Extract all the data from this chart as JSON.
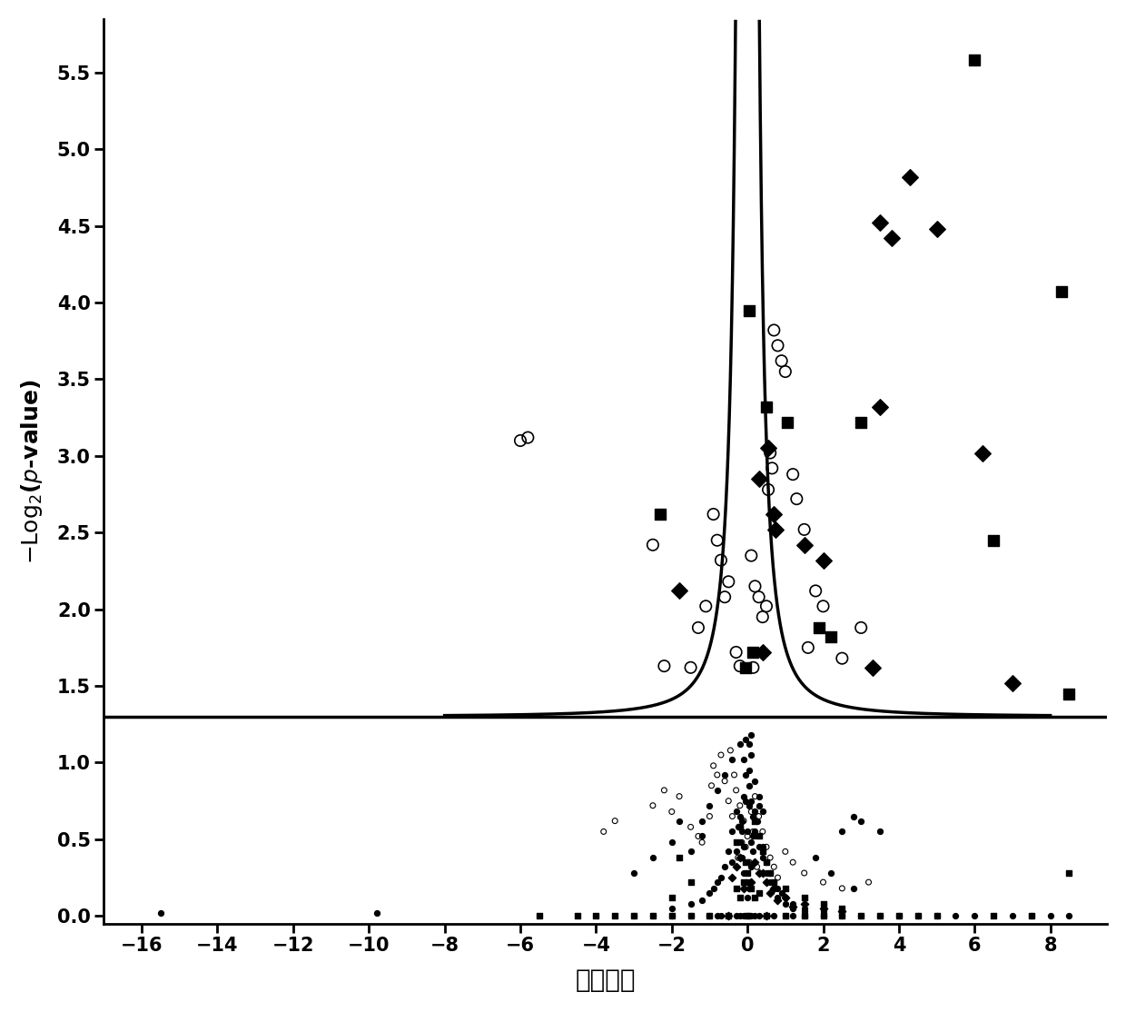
{
  "xlabel": "定量数値",
  "ylabel": "-Log$_2$($p$-value)",
  "xlim": [
    -17,
    9.5
  ],
  "ylim": [
    -0.05,
    5.85
  ],
  "xticks": [
    -16,
    -14,
    -12,
    -10,
    -8,
    -6,
    -4,
    -2,
    0,
    2,
    4,
    6,
    8
  ],
  "yticks": [
    0,
    0.5,
    1.0,
    1.5,
    2.0,
    2.5,
    3.0,
    3.5,
    4.0,
    4.5,
    5.0,
    5.5
  ],
  "threshold_y": 1.3,
  "background_color": "#ffffff",
  "point_color": "#000000",
  "line_color": "#000000",
  "scatter_circle_open_large": [
    [
      -6.0,
      3.1
    ],
    [
      -5.8,
      3.12
    ],
    [
      -2.5,
      2.42
    ],
    [
      -0.8,
      2.45
    ],
    [
      -0.7,
      2.32
    ],
    [
      -0.5,
      2.18
    ],
    [
      -0.6,
      2.08
    ],
    [
      -0.3,
      1.72
    ],
    [
      -0.2,
      1.63
    ],
    [
      -0.9,
      2.62
    ],
    [
      -1.1,
      2.02
    ],
    [
      -1.3,
      1.88
    ],
    [
      -2.2,
      1.63
    ],
    [
      -1.5,
      1.62
    ],
    [
      0.1,
      2.35
    ],
    [
      0.2,
      2.15
    ],
    [
      0.3,
      2.08
    ],
    [
      0.4,
      1.95
    ],
    [
      0.5,
      2.02
    ],
    [
      0.7,
      3.82
    ],
    [
      0.8,
      3.72
    ],
    [
      0.9,
      3.62
    ],
    [
      1.0,
      3.55
    ],
    [
      1.2,
      2.88
    ],
    [
      1.3,
      2.72
    ],
    [
      1.5,
      2.52
    ],
    [
      1.8,
      2.12
    ],
    [
      2.0,
      2.02
    ],
    [
      0.6,
      3.02
    ],
    [
      0.65,
      2.92
    ],
    [
      0.55,
      2.78
    ],
    [
      2.5,
      1.68
    ],
    [
      3.0,
      1.88
    ],
    [
      1.6,
      1.75
    ],
    [
      0.15,
      1.62
    ]
  ],
  "scatter_circle_open_small": [
    [
      -3.8,
      0.55
    ],
    [
      -3.5,
      0.62
    ],
    [
      -2.5,
      0.72
    ],
    [
      -2.2,
      0.82
    ],
    [
      -2.0,
      0.68
    ],
    [
      -1.8,
      0.78
    ],
    [
      -1.5,
      0.58
    ],
    [
      -1.2,
      0.48
    ],
    [
      -0.8,
      0.92
    ],
    [
      -0.7,
      1.05
    ],
    [
      -0.6,
      0.88
    ],
    [
      -0.5,
      0.75
    ],
    [
      -0.4,
      0.65
    ],
    [
      -0.3,
      0.82
    ],
    [
      -0.2,
      0.72
    ],
    [
      -0.1,
      0.62
    ],
    [
      0.0,
      0.52
    ],
    [
      0.1,
      0.68
    ],
    [
      0.2,
      0.78
    ],
    [
      0.3,
      0.65
    ],
    [
      0.4,
      0.55
    ],
    [
      0.5,
      0.45
    ],
    [
      0.6,
      0.38
    ],
    [
      1.0,
      0.42
    ],
    [
      1.2,
      0.35
    ],
    [
      1.5,
      0.28
    ],
    [
      2.0,
      0.22
    ],
    [
      -0.9,
      0.98
    ],
    [
      -0.95,
      0.85
    ],
    [
      0.05,
      0.35
    ],
    [
      -0.05,
      0.45
    ],
    [
      0.15,
      0.55
    ],
    [
      -0.15,
      0.48
    ],
    [
      0.25,
      0.32
    ],
    [
      -0.25,
      0.38
    ],
    [
      -1.0,
      0.65
    ],
    [
      -1.3,
      0.52
    ],
    [
      2.5,
      0.18
    ],
    [
      3.2,
      0.22
    ],
    [
      0.7,
      0.32
    ],
    [
      0.8,
      0.25
    ],
    [
      -0.35,
      0.92
    ],
    [
      -0.45,
      1.08
    ]
  ],
  "scatter_square_filled_large": [
    [
      -2.3,
      2.62
    ],
    [
      0.05,
      3.95
    ],
    [
      0.5,
      3.32
    ],
    [
      1.05,
      3.22
    ],
    [
      1.9,
      1.88
    ],
    [
      2.2,
      1.82
    ],
    [
      3.0,
      3.22
    ],
    [
      6.0,
      5.58
    ],
    [
      8.3,
      4.07
    ],
    [
      6.5,
      2.45
    ],
    [
      8.5,
      1.45
    ],
    [
      0.15,
      1.72
    ],
    [
      -0.05,
      1.62
    ]
  ],
  "scatter_square_small": [
    [
      -3.5,
      0.0
    ],
    [
      -4.0,
      0.0
    ],
    [
      -2.0,
      0.12
    ],
    [
      -1.5,
      0.22
    ],
    [
      -1.8,
      0.38
    ],
    [
      0.0,
      0.28
    ],
    [
      -0.05,
      0.35
    ],
    [
      0.05,
      0.22
    ],
    [
      0.1,
      0.18
    ],
    [
      -0.1,
      0.22
    ],
    [
      1.0,
      0.18
    ],
    [
      1.5,
      0.12
    ],
    [
      2.0,
      0.08
    ],
    [
      2.5,
      0.05
    ],
    [
      0.2,
      0.62
    ],
    [
      -0.2,
      0.58
    ],
    [
      0.3,
      0.52
    ],
    [
      -0.3,
      0.48
    ],
    [
      0.4,
      0.42
    ],
    [
      0.5,
      0.35
    ],
    [
      0.6,
      0.28
    ],
    [
      0.7,
      0.22
    ],
    [
      3.5,
      0.0
    ],
    [
      4.0,
      0.0
    ],
    [
      4.5,
      0.0
    ],
    [
      5.0,
      0.0
    ],
    [
      6.5,
      0.0
    ],
    [
      7.5,
      0.0
    ],
    [
      -4.5,
      0.0
    ],
    [
      8.5,
      0.28
    ],
    [
      -5.5,
      0.0
    ],
    [
      0.0,
      0.0
    ],
    [
      0.5,
      0.0
    ],
    [
      -0.5,
      0.0
    ],
    [
      1.0,
      0.0
    ],
    [
      -1.0,
      0.0
    ],
    [
      1.5,
      0.0
    ],
    [
      2.0,
      0.0
    ],
    [
      -2.0,
      0.0
    ],
    [
      -1.5,
      0.0
    ],
    [
      2.5,
      0.0
    ],
    [
      3.0,
      0.0
    ],
    [
      -2.5,
      0.0
    ],
    [
      -3.0,
      0.0
    ],
    [
      -0.2,
      0.12
    ],
    [
      0.2,
      0.12
    ],
    [
      -0.3,
      0.18
    ],
    [
      0.3,
      0.15
    ]
  ],
  "scatter_diamond_filled_large": [
    [
      -1.8,
      2.12
    ],
    [
      0.3,
      2.85
    ],
    [
      0.55,
      3.05
    ],
    [
      0.7,
      2.62
    ],
    [
      0.75,
      2.52
    ],
    [
      1.5,
      2.42
    ],
    [
      2.0,
      2.32
    ],
    [
      3.5,
      4.52
    ],
    [
      3.8,
      4.42
    ],
    [
      4.3,
      4.82
    ],
    [
      5.0,
      4.48
    ],
    [
      3.5,
      3.32
    ],
    [
      6.2,
      3.02
    ],
    [
      7.0,
      1.52
    ],
    [
      3.3,
      1.62
    ],
    [
      0.4,
      1.72
    ]
  ],
  "scatter_diamond_small": [
    [
      -0.5,
      0.0
    ],
    [
      0.5,
      0.0
    ],
    [
      0.2,
      0.35
    ],
    [
      -0.2,
      0.38
    ],
    [
      0.3,
      0.28
    ],
    [
      -0.3,
      0.32
    ],
    [
      0.5,
      0.22
    ],
    [
      0.7,
      0.18
    ],
    [
      1.0,
      0.12
    ],
    [
      1.5,
      0.08
    ],
    [
      2.0,
      0.05
    ],
    [
      2.5,
      0.03
    ],
    [
      -0.1,
      0.18
    ],
    [
      0.1,
      0.22
    ],
    [
      -0.4,
      0.25
    ],
    [
      0.4,
      0.28
    ],
    [
      0.6,
      0.15
    ],
    [
      0.8,
      0.1
    ],
    [
      1.2,
      0.06
    ]
  ],
  "scatter_circle_filled_large": [],
  "scatter_circle_filled_small": [
    [
      -15.5,
      0.02
    ],
    [
      -9.8,
      0.02
    ],
    [
      0.0,
      0.0
    ],
    [
      0.05,
      0.0
    ],
    [
      0.1,
      0.0
    ],
    [
      -0.1,
      0.0
    ],
    [
      0.2,
      0.0
    ],
    [
      -0.2,
      0.0
    ],
    [
      0.3,
      0.0
    ],
    [
      -0.3,
      0.0
    ],
    [
      0.5,
      0.0
    ],
    [
      -0.5,
      0.0
    ],
    [
      0.7,
      0.0
    ],
    [
      -0.7,
      0.0
    ],
    [
      1.0,
      0.0
    ],
    [
      1.2,
      0.0
    ],
    [
      1.5,
      0.0
    ],
    [
      2.0,
      0.0
    ],
    [
      2.5,
      0.0
    ],
    [
      3.0,
      0.0
    ],
    [
      3.5,
      0.0
    ],
    [
      4.0,
      0.0
    ],
    [
      4.5,
      0.0
    ],
    [
      5.0,
      0.0
    ],
    [
      5.5,
      0.0
    ],
    [
      6.0,
      0.0
    ],
    [
      -1.0,
      0.0
    ],
    [
      -1.5,
      0.0
    ],
    [
      -2.0,
      0.0
    ],
    [
      -2.5,
      0.0
    ],
    [
      -3.0,
      0.0
    ],
    [
      7.0,
      0.0
    ],
    [
      7.5,
      0.0
    ],
    [
      8.0,
      0.0
    ],
    [
      -0.8,
      0.0
    ],
    [
      8.5,
      0.0
    ],
    [
      0.05,
      0.85
    ],
    [
      -0.05,
      0.92
    ],
    [
      0.1,
      0.75
    ],
    [
      -0.1,
      0.78
    ],
    [
      0.15,
      0.65
    ],
    [
      -0.15,
      0.62
    ],
    [
      0.2,
      0.55
    ],
    [
      -0.2,
      0.58
    ],
    [
      0.3,
      0.45
    ],
    [
      -0.3,
      0.42
    ],
    [
      0.4,
      0.38
    ],
    [
      -0.4,
      0.35
    ],
    [
      0.5,
      0.28
    ],
    [
      0.6,
      0.22
    ],
    [
      0.7,
      0.18
    ],
    [
      0.8,
      0.12
    ],
    [
      1.0,
      0.08
    ],
    [
      1.2,
      0.05
    ],
    [
      1.5,
      0.03
    ],
    [
      0.05,
      0.95
    ],
    [
      0.1,
      1.05
    ],
    [
      -0.1,
      1.02
    ],
    [
      0.2,
      0.88
    ],
    [
      0.3,
      0.78
    ],
    [
      0.4,
      0.68
    ],
    [
      -1.8,
      0.62
    ],
    [
      -2.0,
      0.48
    ],
    [
      2.5,
      0.55
    ],
    [
      3.0,
      0.62
    ],
    [
      -0.05,
      1.15
    ],
    [
      0.05,
      1.12
    ],
    [
      0.1,
      1.18
    ],
    [
      0.0,
      0.12
    ],
    [
      0.05,
      0.18
    ],
    [
      -0.05,
      0.22
    ],
    [
      0.1,
      0.32
    ],
    [
      -0.1,
      0.28
    ],
    [
      0.15,
      0.42
    ],
    [
      -0.15,
      0.38
    ],
    [
      0.2,
      0.52
    ],
    [
      -0.2,
      0.48
    ],
    [
      0.25,
      0.62
    ],
    [
      -0.25,
      0.58
    ],
    [
      0.3,
      0.72
    ],
    [
      -0.3,
      0.68
    ],
    [
      0.4,
      0.45
    ],
    [
      -0.4,
      0.55
    ],
    [
      0.5,
      0.35
    ],
    [
      -0.5,
      0.42
    ],
    [
      0.6,
      0.28
    ],
    [
      -0.6,
      0.32
    ],
    [
      0.7,
      0.22
    ],
    [
      -0.7,
      0.25
    ],
    [
      0.8,
      0.18
    ],
    [
      -0.8,
      0.22
    ],
    [
      0.9,
      0.15
    ],
    [
      -0.9,
      0.18
    ],
    [
      1.0,
      0.12
    ],
    [
      -1.0,
      0.15
    ],
    [
      1.2,
      0.08
    ],
    [
      -1.2,
      0.1
    ],
    [
      1.5,
      0.05
    ],
    [
      -1.5,
      0.08
    ],
    [
      2.0,
      0.03
    ],
    [
      -2.0,
      0.05
    ],
    [
      -1.2,
      0.62
    ],
    [
      -1.0,
      0.72
    ],
    [
      -0.8,
      0.82
    ],
    [
      -0.6,
      0.92
    ],
    [
      -0.4,
      1.02
    ],
    [
      -0.2,
      1.12
    ],
    [
      1.8,
      0.38
    ],
    [
      2.2,
      0.28
    ],
    [
      2.8,
      0.18
    ],
    [
      -2.5,
      0.38
    ],
    [
      -3.0,
      0.28
    ],
    [
      0.0,
      0.35
    ],
    [
      0.0,
      0.55
    ],
    [
      -0.1,
      0.45
    ],
    [
      0.1,
      0.48
    ],
    [
      -0.15,
      0.55
    ],
    [
      0.15,
      0.52
    ],
    [
      -0.2,
      0.65
    ],
    [
      0.2,
      0.68
    ],
    [
      -0.05,
      0.75
    ],
    [
      0.05,
      0.72
    ],
    [
      3.5,
      0.55
    ],
    [
      2.8,
      0.65
    ],
    [
      -1.5,
      0.42
    ],
    [
      -1.2,
      0.52
    ]
  ]
}
